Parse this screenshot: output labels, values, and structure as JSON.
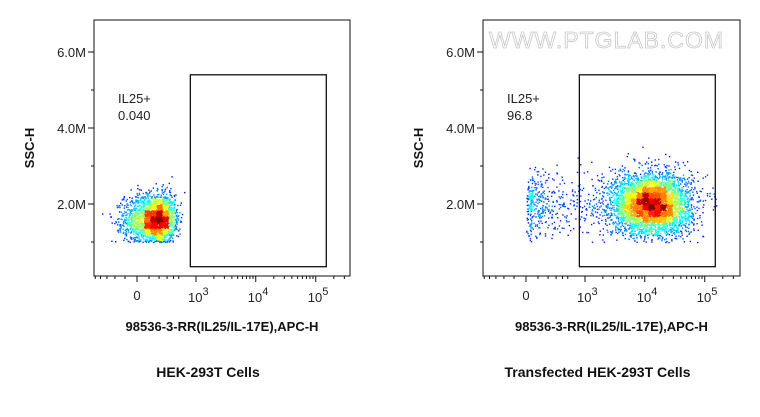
{
  "chart_data": [
    {
      "type": "scatter",
      "title": "HEK-293T Cells",
      "xlabel": "98536-3-RR(IL25/IL-17E),APC-H",
      "ylabel": "SSC-H",
      "x_scale": "biexponential",
      "y_scale": "linear",
      "xticks": [
        {
          "value": 0,
          "label": "0"
        },
        {
          "value": 1000,
          "base": "10",
          "exp": "3"
        },
        {
          "value": 10000,
          "base": "10",
          "exp": "4"
        },
        {
          "value": 100000,
          "base": "10",
          "exp": "5"
        }
      ],
      "yticks": [
        {
          "value": 2000000,
          "label": "2.0M"
        },
        {
          "value": 4000000,
          "label": "4.0M"
        },
        {
          "value": 6000000,
          "label": "6.0M"
        }
      ],
      "gate": {
        "name": "IL25+",
        "percent": "0.040",
        "x_range": [
          800,
          150000
        ],
        "y_range": [
          350000,
          5400000
        ]
      },
      "populations": [
        {
          "count": 2600,
          "x_center": 150,
          "x_sd": 130,
          "x_kind": "linear",
          "y_center": 1600000,
          "y_sd": 330000
        }
      ],
      "watermark": ""
    },
    {
      "type": "scatter",
      "title": "Transfected HEK-293T Cells",
      "xlabel": "98536-3-RR(IL25/IL-17E),APC-H",
      "ylabel": "SSC-H",
      "x_scale": "biexponential",
      "y_scale": "linear",
      "xticks": [
        {
          "value": 0,
          "label": "0"
        },
        {
          "value": 1000,
          "base": "10",
          "exp": "3"
        },
        {
          "value": 10000,
          "base": "10",
          "exp": "4"
        },
        {
          "value": 100000,
          "base": "10",
          "exp": "5"
        }
      ],
      "yticks": [
        {
          "value": 2000000,
          "label": "2.0M"
        },
        {
          "value": 4000000,
          "label": "4.0M"
        },
        {
          "value": 6000000,
          "label": "6.0M"
        }
      ],
      "gate": {
        "name": "IL25+",
        "percent": "96.8",
        "x_range": [
          800,
          150000
        ],
        "y_range": [
          350000,
          5400000
        ]
      },
      "populations": [
        {
          "count": 4600,
          "x_center_log10": 4.1,
          "x_sd_log10": 0.33,
          "x_kind": "log",
          "y_center": 2000000,
          "y_sd": 400000
        },
        {
          "count": 450,
          "x_center_log10": 2.3,
          "x_sd_log10": 0.7,
          "x_kind": "log",
          "y_center": 2000000,
          "y_sd": 450000
        }
      ],
      "watermark": "WWW.PTGLAB.COM"
    }
  ]
}
